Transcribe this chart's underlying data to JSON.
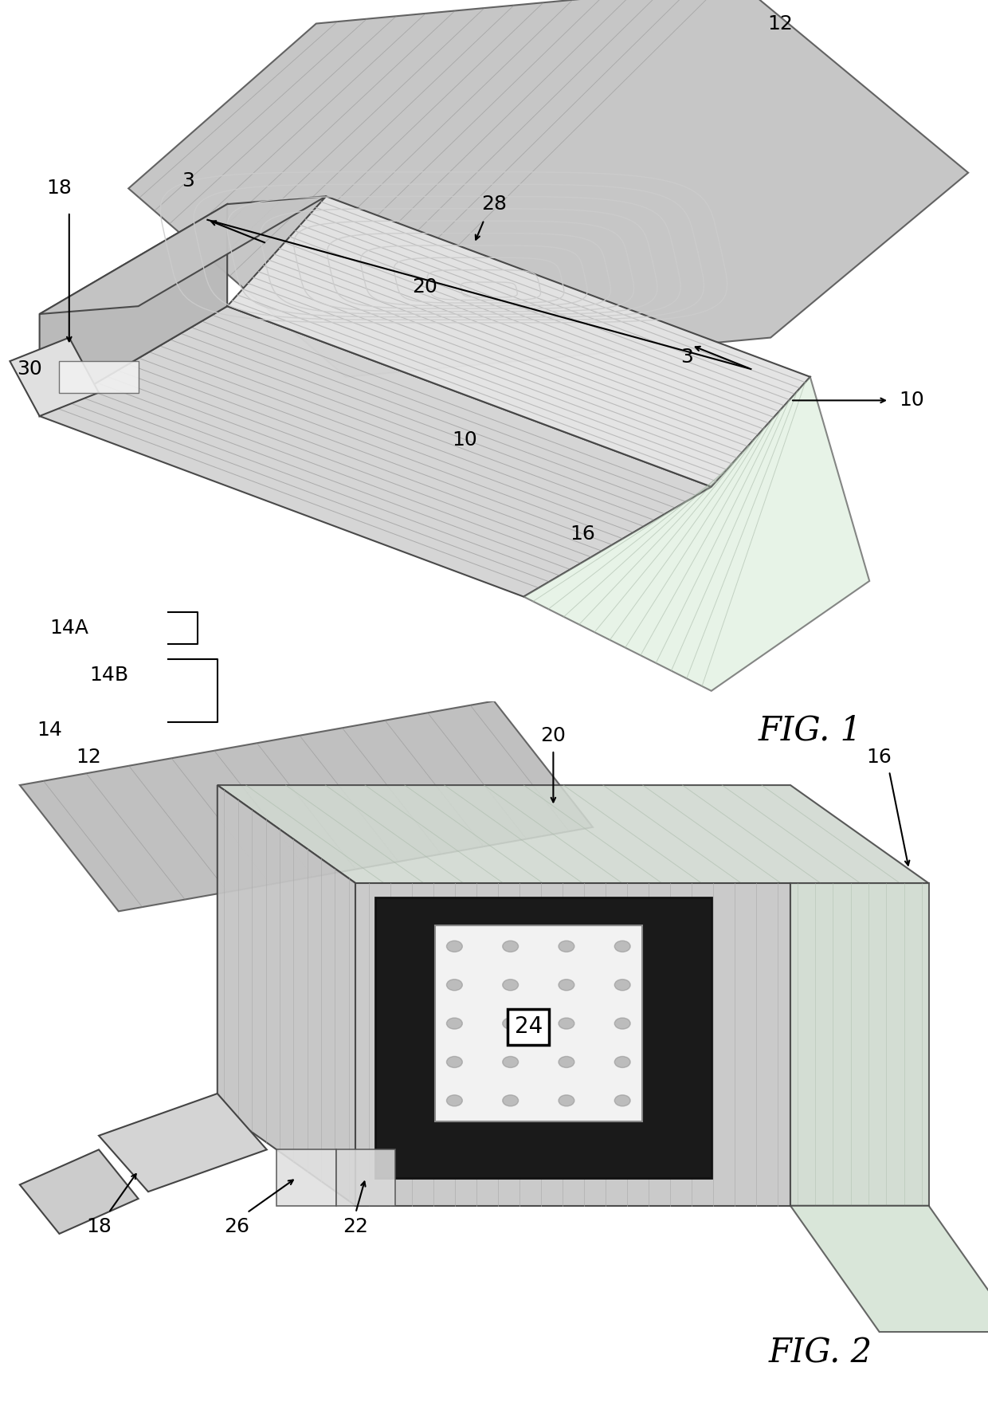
{
  "bg_color": "#ffffff",
  "fig_width": 12.4,
  "fig_height": 17.59,
  "dpi": 100,
  "fig1_label": "FIG. 1",
  "fig2_label": "FIG. 2",
  "label_fontsize": 18,
  "fig_label_fontsize": 30
}
